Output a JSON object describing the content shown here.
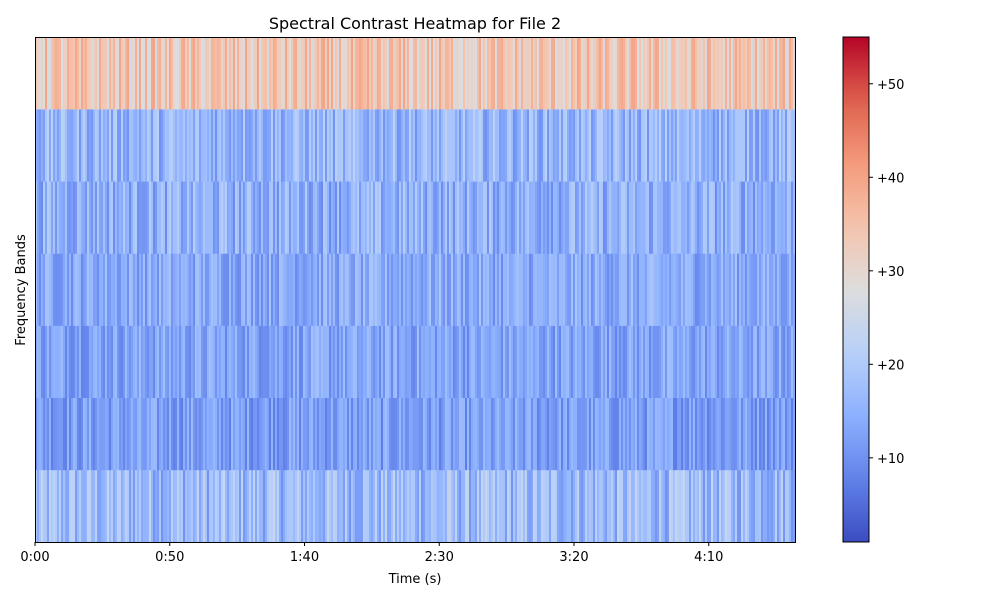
{
  "chart_data": {
    "type": "heatmap",
    "title": "Spectral Contrast Heatmap for File 2",
    "xlabel": "Time (s)",
    "ylabel": "Frequency Bands",
    "xlim": [
      0,
      282
    ],
    "x_ticks": [
      {
        "value": 0,
        "label": "0:00"
      },
      {
        "value": 50,
        "label": "0:50"
      },
      {
        "value": 100,
        "label": "1:40"
      },
      {
        "value": 150,
        "label": "2:30"
      },
      {
        "value": 200,
        "label": "3:20"
      },
      {
        "value": 250,
        "label": "4:10"
      }
    ],
    "bands": [
      {
        "index": 0,
        "mean": 17,
        "spread": 7
      },
      {
        "index": 1,
        "mean": 12,
        "spread": 5
      },
      {
        "index": 2,
        "mean": 13,
        "spread": 5
      },
      {
        "index": 3,
        "mean": 14,
        "spread": 5
      },
      {
        "index": 4,
        "mean": 15,
        "spread": 6
      },
      {
        "index": 5,
        "mean": 16,
        "spread": 6
      },
      {
        "index": 6,
        "mean": 33,
        "spread": 7
      }
    ],
    "colorbar": {
      "cmap": "coolwarm",
      "vmin": 1,
      "vmax": 55,
      "ticks": [
        {
          "value": 10,
          "label": "+10"
        },
        {
          "value": 20,
          "label": "+20"
        },
        {
          "value": 30,
          "label": "+30"
        },
        {
          "value": 40,
          "label": "+40"
        },
        {
          "value": 50,
          "label": "+50"
        }
      ]
    },
    "grid": false,
    "legend": "colorbar-right"
  }
}
